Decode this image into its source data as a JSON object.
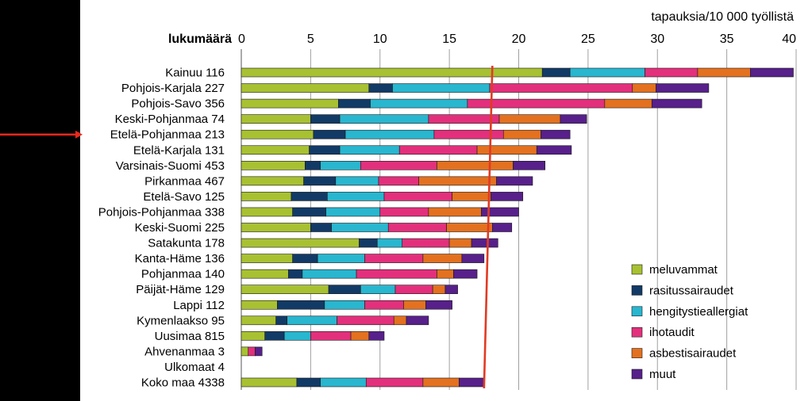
{
  "chart_data": {
    "type": "bar",
    "orientation": "horizontal",
    "stacked": true,
    "title": "tapauksia/10 000 työllistä",
    "ylabel": "lukumäärä",
    "xlim": [
      0,
      40
    ],
    "xticks": [
      0,
      5,
      10,
      15,
      20,
      25,
      30,
      35,
      40
    ],
    "highlighted_category": "Etelä-Pohjanmaa 213",
    "reference_line": {
      "label": "Koko maa",
      "value_start": 18.1,
      "value_end": 17.5
    },
    "categories": [
      "Kainuu 116",
      "Pohjois-Karjala 227",
      "Pohjois-Savo 356",
      "Keski-Pohjanmaa 74",
      "Etelä-Pohjanmaa 213",
      "Etelä-Karjala 131",
      "Varsinais-Suomi 453",
      "Pirkanmaa 467",
      "Etelä-Savo 125",
      "Pohjois-Pohjanmaa 338",
      "Keski-Suomi 225",
      "Satakunta 178",
      "Kanta-Häme 136",
      "Pohjanmaa 140",
      "Päijät-Häme 129",
      "Lappi 112",
      "Kymenlaakso 95",
      "Uusimaa 815",
      "Ahvenanmaa 3",
      "Ulkomaat 4",
      "Koko maa 4338"
    ],
    "series": [
      {
        "name": "meluvammat",
        "color": "#a8c132",
        "values": [
          21.7,
          9.2,
          7.0,
          5.0,
          5.2,
          4.9,
          4.6,
          4.5,
          3.6,
          3.7,
          5.0,
          8.5,
          3.7,
          3.4,
          6.3,
          2.6,
          2.5,
          1.7,
          0.5,
          0,
          4.0
        ]
      },
      {
        "name": "rasitussairaudet",
        "color": "#123a66",
        "values": [
          2.0,
          1.7,
          2.3,
          2.1,
          2.3,
          2.2,
          1.1,
          2.3,
          2.6,
          2.4,
          1.5,
          1.3,
          1.8,
          1.0,
          2.3,
          3.4,
          0.8,
          1.4,
          0,
          0,
          1.7
        ]
      },
      {
        "name": "hengitystieallergiat",
        "color": "#29b6cf",
        "values": [
          5.4,
          7.0,
          7.0,
          6.4,
          6.4,
          4.3,
          2.9,
          3.1,
          4.1,
          3.9,
          4.1,
          1.8,
          3.4,
          3.9,
          2.5,
          2.9,
          3.6,
          1.9,
          0,
          0,
          3.3
        ]
      },
      {
        "name": "ihotaudit",
        "color": "#e3307c",
        "values": [
          3.8,
          10.3,
          9.9,
          5.1,
          5.0,
          5.6,
          5.5,
          2.9,
          4.9,
          3.5,
          4.2,
          3.4,
          4.2,
          5.8,
          2.7,
          2.8,
          4.1,
          2.9,
          0.5,
          0,
          4.1
        ]
      },
      {
        "name": "asbestisairaudet",
        "color": "#e37120",
        "values": [
          3.8,
          1.7,
          3.4,
          4.4,
          2.7,
          4.3,
          5.5,
          5.6,
          2.8,
          3.8,
          3.3,
          1.6,
          2.8,
          1.2,
          0.9,
          1.6,
          0.9,
          1.3,
          0,
          0,
          2.6
        ]
      },
      {
        "name": "muut",
        "color": "#57208a",
        "values": [
          3.1,
          3.8,
          3.6,
          1.9,
          2.1,
          2.5,
          2.3,
          2.6,
          2.3,
          2.7,
          1.4,
          1.9,
          1.6,
          1.7,
          0.9,
          1.9,
          1.6,
          1.1,
          0.5,
          0,
          1.8
        ]
      }
    ]
  }
}
